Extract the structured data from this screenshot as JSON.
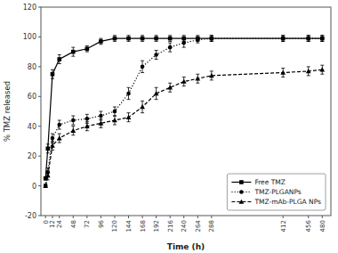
{
  "chart_data": {
    "type": "line",
    "xlabel": "Time (h)",
    "ylabel": "% TMZ released",
    "x": [
      0,
      4,
      12,
      24,
      48,
      72,
      96,
      120,
      144,
      168,
      192,
      216,
      240,
      264,
      288,
      412,
      456,
      480
    ],
    "xlim": [
      -8,
      495
    ],
    "xticks": [
      0,
      12,
      24,
      48,
      72,
      96,
      120,
      144,
      168,
      192,
      216,
      240,
      264,
      288,
      412,
      456,
      480
    ],
    "ylim": [
      -20,
      120
    ],
    "yticks": [
      -20,
      0,
      20,
      40,
      60,
      80,
      100,
      120
    ],
    "grid": false,
    "legend": "lower right",
    "series": [
      {
        "name": "Free TMZ",
        "color": "#000000",
        "marker": "square",
        "line_style": "solid",
        "values": [
          5,
          25,
          75,
          85,
          90,
          92,
          97,
          99,
          99,
          99,
          99,
          99,
          99,
          99,
          99,
          99,
          99,
          99
        ],
        "errors": [
          1,
          3,
          3,
          3,
          3,
          2,
          2,
          2,
          2,
          2,
          2,
          2,
          2,
          2,
          2,
          2,
          2,
          2
        ]
      },
      {
        "name": "TMZ-PLGANPs",
        "color": "#000000",
        "marker": "circle",
        "line_style": "dotted",
        "values": [
          0,
          9,
          32,
          41,
          44,
          45,
          47,
          50,
          62,
          80,
          88,
          93,
          96,
          98,
          99,
          99,
          99,
          99
        ],
        "errors": [
          1,
          3,
          3,
          3,
          3,
          3,
          3,
          3,
          4,
          4,
          3,
          3,
          3,
          2,
          2,
          2,
          2,
          2
        ]
      },
      {
        "name": "TMZ-mAb-PLGA NPs",
        "color": "#000000",
        "marker": "triangle",
        "line_style": "dashed",
        "values": [
          0,
          7,
          27,
          32,
          37,
          40,
          42,
          44,
          46,
          53,
          62,
          66,
          70,
          72,
          74,
          76,
          77,
          78
        ],
        "errors": [
          1,
          3,
          3,
          3,
          3,
          3,
          3,
          3,
          3,
          4,
          4,
          3,
          3,
          3,
          3,
          3,
          3,
          3
        ]
      }
    ]
  }
}
